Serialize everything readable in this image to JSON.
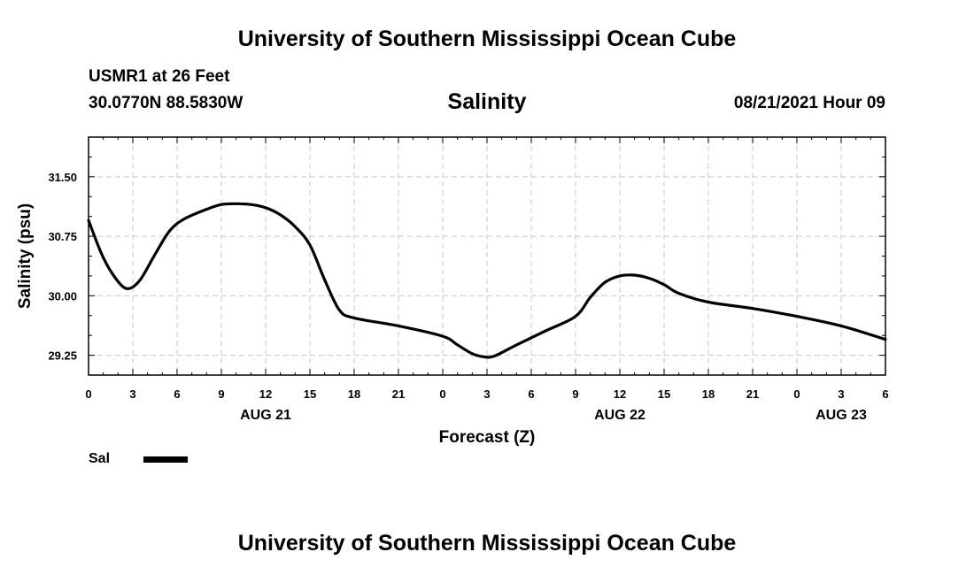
{
  "header": {
    "title": "University of Southern Mississippi Ocean Cube",
    "station": "USMR1 at 26 Feet",
    "coords": "30.0770N  88.5830W",
    "parameter": "Salinity",
    "datetime": "08/21/2021 Hour 09"
  },
  "footer": {
    "title": "University of Southern Mississippi Ocean Cube"
  },
  "legend": {
    "label": "Sal",
    "color": "#000000"
  },
  "chart_data": {
    "type": "line",
    "title": "Salinity",
    "xlabel": "Forecast (Z)",
    "ylabel": "Salinity (psu)",
    "xlim": [
      0,
      54
    ],
    "ylim": [
      29.0,
      32.0
    ],
    "x_ticks": [
      0,
      3,
      6,
      9,
      12,
      15,
      18,
      21,
      24,
      27,
      30,
      33,
      36,
      39,
      42,
      45,
      48,
      51,
      54
    ],
    "x_tick_labels": [
      "0",
      "3",
      "6",
      "9",
      "12",
      "15",
      "18",
      "21",
      "0",
      "3",
      "6",
      "9",
      "12",
      "15",
      "18",
      "21",
      "0",
      "3",
      "6"
    ],
    "y_ticks": [
      29.25,
      30.0,
      30.75,
      31.5
    ],
    "y_tick_labels": [
      "29.25",
      "30.00",
      "30.75",
      "31.50"
    ],
    "date_labels": [
      {
        "x": 12,
        "label": "AUG 21"
      },
      {
        "x": 36,
        "label": "AUG 22"
      },
      {
        "x": 51,
        "label": "AUG 23"
      }
    ],
    "grid": true,
    "series": [
      {
        "name": "Sal",
        "x": [
          0,
          1,
          2,
          2.7,
          3.5,
          4.5,
          5.5,
          6.5,
          8,
          9,
          10,
          11,
          12,
          13,
          14,
          15,
          16,
          17,
          18,
          21,
          24,
          25,
          26,
          26.8,
          27.5,
          29,
          31,
          33,
          34,
          35,
          36,
          37,
          38,
          39,
          40,
          42,
          45,
          48,
          51,
          54
        ],
        "y": [
          30.95,
          30.48,
          30.18,
          30.09,
          30.2,
          30.52,
          30.82,
          30.97,
          31.09,
          31.15,
          31.16,
          31.15,
          31.11,
          31.02,
          30.87,
          30.64,
          30.2,
          29.82,
          29.72,
          29.62,
          29.49,
          29.38,
          29.27,
          29.23,
          29.24,
          29.38,
          29.56,
          29.74,
          29.98,
          30.17,
          30.25,
          30.26,
          30.22,
          30.14,
          30.03,
          29.92,
          29.84,
          29.74,
          29.62,
          29.45
        ]
      }
    ]
  }
}
